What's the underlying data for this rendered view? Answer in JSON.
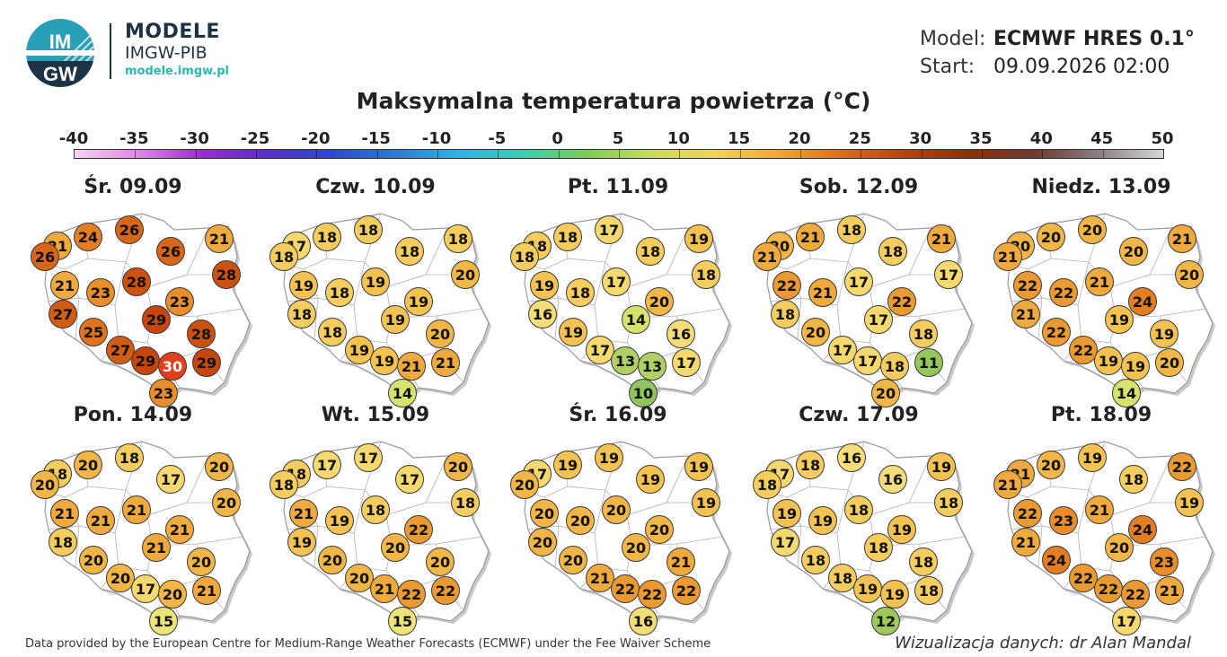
{
  "brand": {
    "logo_text": "IMGW",
    "name": "MODELE",
    "org": "IMGW-PIB",
    "url": "modele.imgw.pl"
  },
  "meta": {
    "model_label": "Model:",
    "model_value": "ECMWF HRES 0.1°",
    "start_label": "Start:",
    "start_value": "09.09.2026 02:00"
  },
  "title": "Maksymalna temperatura powietrza (°C)",
  "scale": {
    "labels": [
      "-40",
      "-35",
      "-30",
      "-25",
      "-20",
      "-15",
      "-10",
      "-5",
      "0",
      "5",
      "10",
      "15",
      "20",
      "25",
      "30",
      "35",
      "40",
      "45",
      "50"
    ],
    "min": -40,
    "max": 50,
    "stops": [
      "#f5d4f0",
      "#e085e6",
      "#9b2bd6",
      "#5a2fd0",
      "#2f47d4",
      "#2a7bd6",
      "#2ab5e8",
      "#35d0b0",
      "#7ccc55",
      "#c6dc5a",
      "#f2d25a",
      "#f0a830",
      "#e06a18",
      "#b8420c",
      "#8e2e0a",
      "#6e3a32",
      "#8a8082",
      "#d6d6d6"
    ]
  },
  "colors": {
    "t10": "#8fc460",
    "t11": "#94c65c",
    "t12": "#9ec95a",
    "t13": "#b0d066",
    "t14": "#d7e26c",
    "t15": "#ece47a",
    "t16": "#f2dd78",
    "t17": "#f5d86e",
    "t18": "#f5cd5e",
    "t19": "#f3c250",
    "t20": "#f1b646",
    "t21": "#efa93c",
    "t22": "#eb9a32",
    "t23": "#e88d2a",
    "t24": "#e47e22",
    "t25": "#df721c",
    "t26": "#d96618",
    "t27": "#d25c14",
    "t28": "#cc5010",
    "t29": "#c8460e",
    "t30": "#e0401a"
  },
  "days": [
    {
      "label": "Śr. 09.09",
      "temps": [
        21,
        24,
        26,
        26,
        21,
        26,
        28,
        21,
        23,
        28,
        23,
        27,
        29,
        28,
        25,
        27,
        29,
        30,
        29,
        23
      ]
    },
    {
      "label": "Czw. 10.09",
      "temps": [
        17,
        18,
        18,
        18,
        18,
        18,
        20,
        19,
        18,
        19,
        19,
        18,
        19,
        20,
        18,
        19,
        19,
        21,
        21,
        14
      ]
    },
    {
      "label": "Pt. 11.09",
      "temps": [
        18,
        18,
        17,
        18,
        19,
        18,
        18,
        19,
        18,
        17,
        20,
        16,
        14,
        16,
        19,
        17,
        13,
        13,
        17,
        10
      ]
    },
    {
      "label": "Sob. 12.09",
      "temps": [
        20,
        21,
        18,
        18,
        21,
        21,
        17,
        22,
        21,
        17,
        22,
        18,
        17,
        18,
        20,
        17,
        17,
        18,
        11,
        20
      ]
    },
    {
      "label": "Niedz. 13.09",
      "temps": [
        20,
        20,
        20,
        20,
        21,
        21,
        20,
        22,
        22,
        21,
        24,
        21,
        19,
        19,
        22,
        22,
        19,
        19,
        20,
        14
      ]
    },
    {
      "label": "Pon. 14.09",
      "temps": [
        18,
        20,
        18,
        17,
        20,
        20,
        20,
        21,
        21,
        21,
        21,
        18,
        21,
        20,
        20,
        20,
        17,
        20,
        21,
        15
      ]
    },
    {
      "label": "Wt. 15.09",
      "temps": [
        18,
        17,
        17,
        17,
        20,
        18,
        18,
        21,
        19,
        18,
        22,
        19,
        20,
        20,
        20,
        20,
        21,
        22,
        22,
        15
      ]
    },
    {
      "label": "Śr. 16.09",
      "temps": [
        17,
        19,
        19,
        19,
        19,
        20,
        19,
        20,
        20,
        20,
        20,
        20,
        20,
        21,
        20,
        21,
        22,
        22,
        22,
        16
      ]
    },
    {
      "label": "Czw. 17.09",
      "temps": [
        17,
        18,
        16,
        16,
        19,
        18,
        18,
        19,
        19,
        18,
        19,
        17,
        18,
        18,
        18,
        18,
        19,
        19,
        18,
        12
      ]
    },
    {
      "label": "Pt. 18.09",
      "temps": [
        21,
        20,
        19,
        18,
        22,
        21,
        19,
        22,
        23,
        21,
        24,
        21,
        20,
        23,
        24,
        22,
        22,
        22,
        21,
        17
      ]
    }
  ],
  "footer": {
    "left": "Data provided by the European Centre for Medium-Range Weather Forecasts (ECMWF) under the Fee Waiver Scheme",
    "right": "Wizualizacja danych: dr Alan Mandal"
  }
}
